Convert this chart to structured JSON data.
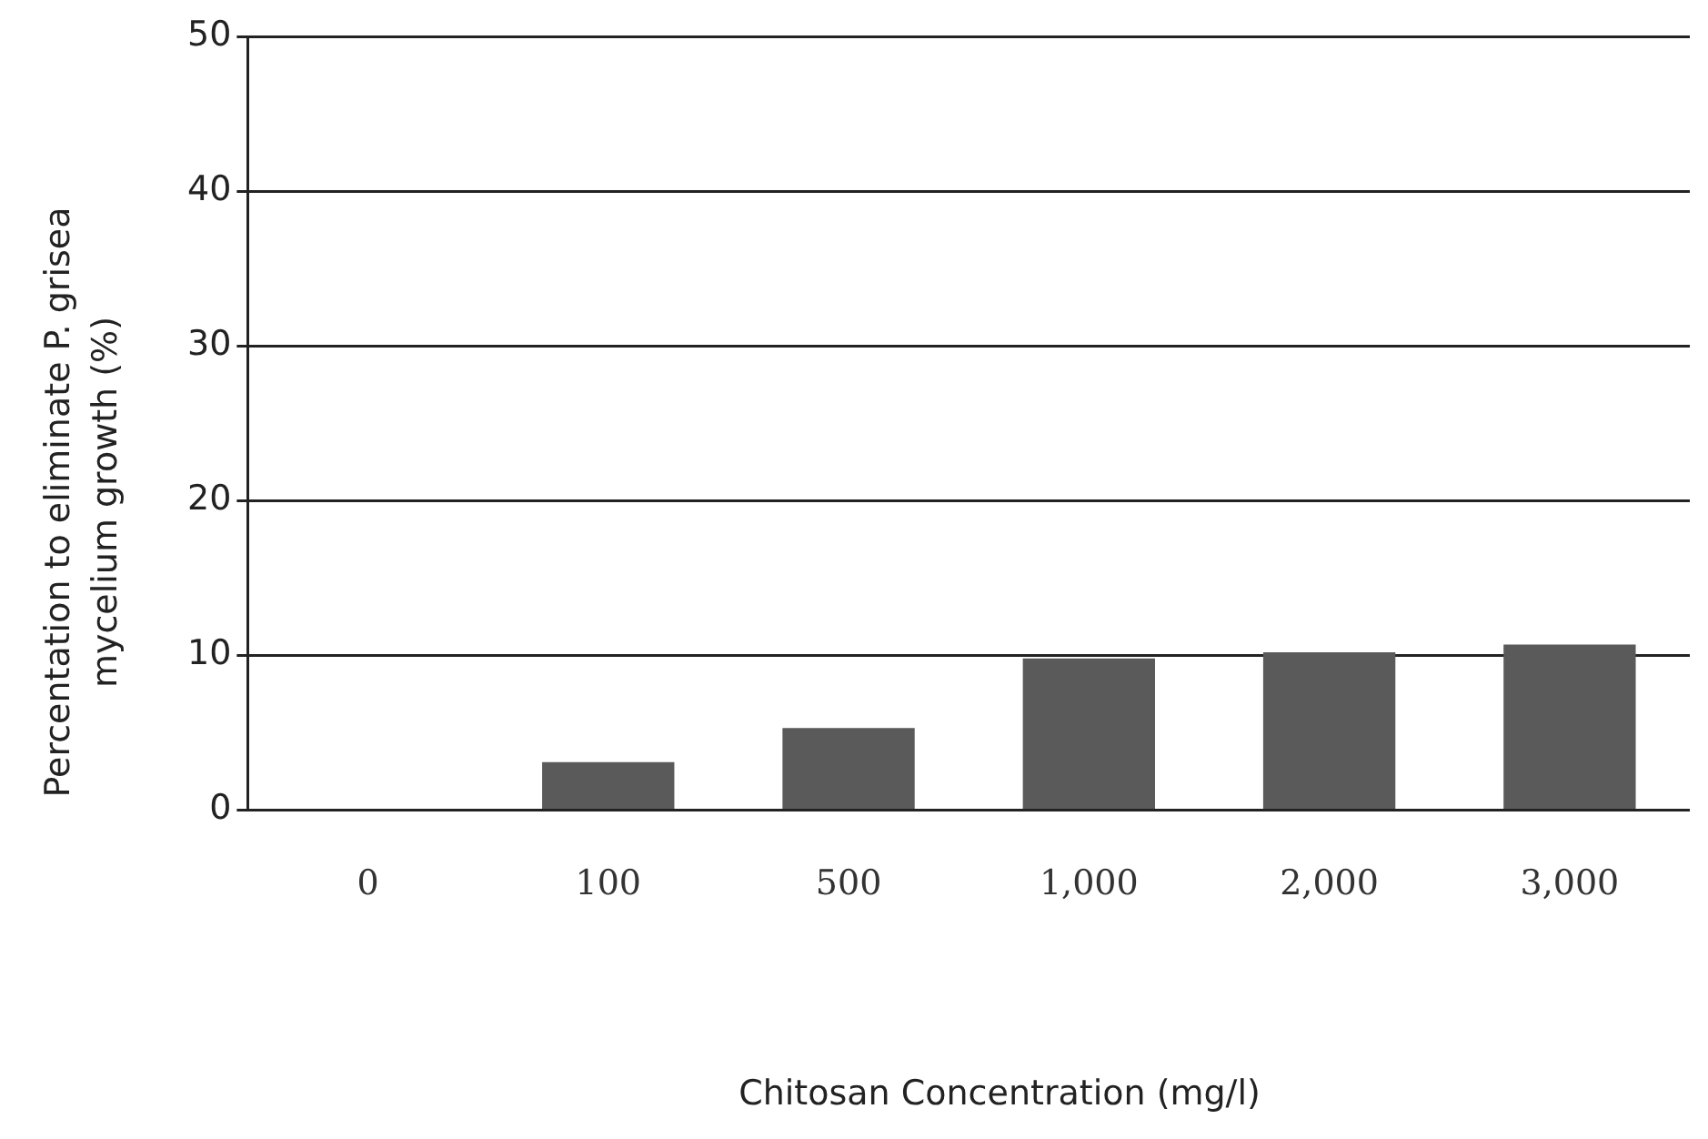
{
  "chart_data": {
    "type": "bar",
    "xlabel": "Chitosan Concentration (mg/l)",
    "ylabel": "Percentation to eliminate P. grisea mycelium growth (%)",
    "categories": [
      "0",
      "100",
      "500",
      "1,000",
      "2,000",
      "3,000"
    ],
    "values": [
      0,
      3.1,
      5.3,
      9.8,
      10.2,
      10.7
    ],
    "color": "#5a5a5a",
    "ylim": [
      0,
      50
    ],
    "yticks": [
      0,
      10,
      20,
      30,
      40,
      50
    ],
    "grid": "y",
    "legend": false
  }
}
